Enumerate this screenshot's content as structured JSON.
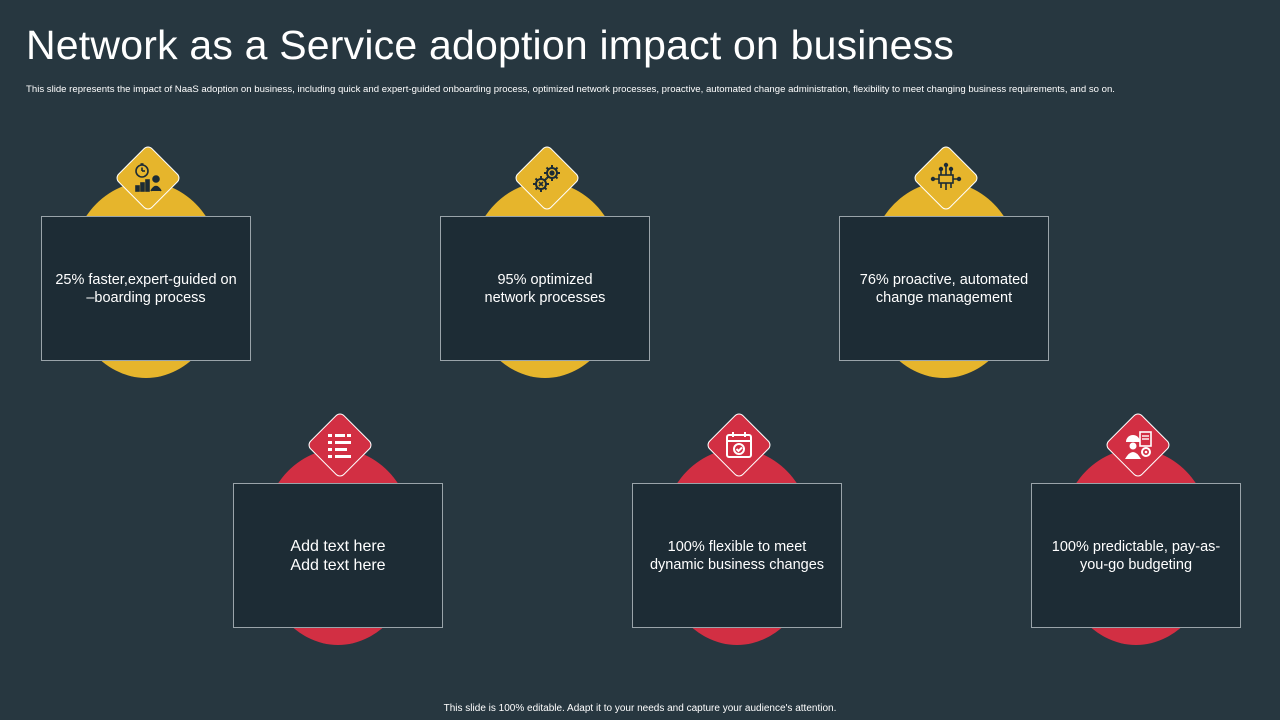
{
  "title": "Network as a Service adoption impact on business",
  "subtitle": "This slide represents the impact of NaaS adoption on business, including quick and expert-guided onboarding process, optimized network processes, proactive, automated change administration,  flexibility to meet changing business requirements, and so on.",
  "footer": "This slide is 100% editable.  Adapt it to your needs and capture your audience's attention.",
  "colors": {
    "background": "#273740",
    "box": "#1d2c35",
    "yellow": "#e6b52c",
    "red": "#d22f43"
  },
  "cards": [
    {
      "icon": "stopwatch-growth-icon",
      "line1": "25% faster,expert-guided on",
      "line2": "–boarding process"
    },
    {
      "icon": "gears-optimize-icon",
      "line1": "95% optimized",
      "line2": "network processes"
    },
    {
      "icon": "circuit-automation-icon",
      "line1": "76% proactive, automated",
      "line2": "change management"
    },
    {
      "icon": "checklist-icon",
      "line1": "Add text here",
      "line2": "Add text here"
    },
    {
      "icon": "calendar-check-icon",
      "line1": "100% flexible to meet",
      "line2": "dynamic business changes"
    },
    {
      "icon": "worker-budget-icon",
      "line1": "100% predictable, pay-as-",
      "line2": "you-go budgeting"
    }
  ]
}
